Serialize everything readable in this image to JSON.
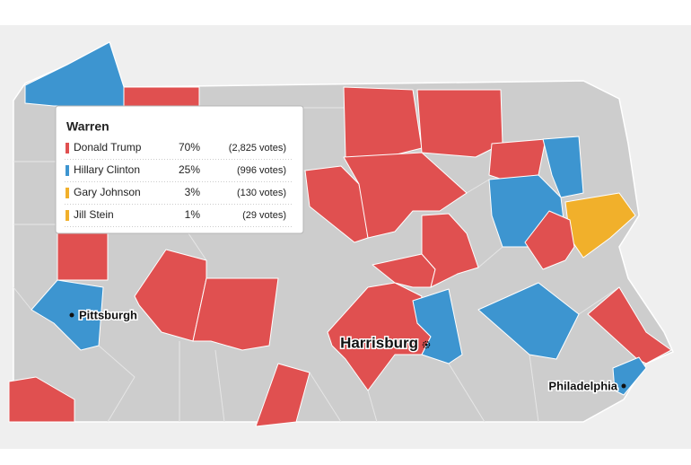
{
  "tooltip": {
    "title": "Warren",
    "rows": [
      {
        "name": "Donald Trump",
        "share": "70%",
        "votes": "(2,825 votes)",
        "color": "#e05050"
      },
      {
        "name": "Hillary Clinton",
        "share": "25%",
        "votes": "(996 votes)",
        "color": "#3d95d0"
      },
      {
        "name": "Gary Johnson",
        "share": "3%",
        "votes": "(130 votes)",
        "color": "#f1b02b"
      },
      {
        "name": "Jill Stein",
        "share": "1%",
        "votes": "(29 votes)",
        "color": "#f1b02b"
      }
    ]
  },
  "cities": [
    "Pittsburgh",
    "Harrisburg",
    "Philadelphia"
  ]
}
